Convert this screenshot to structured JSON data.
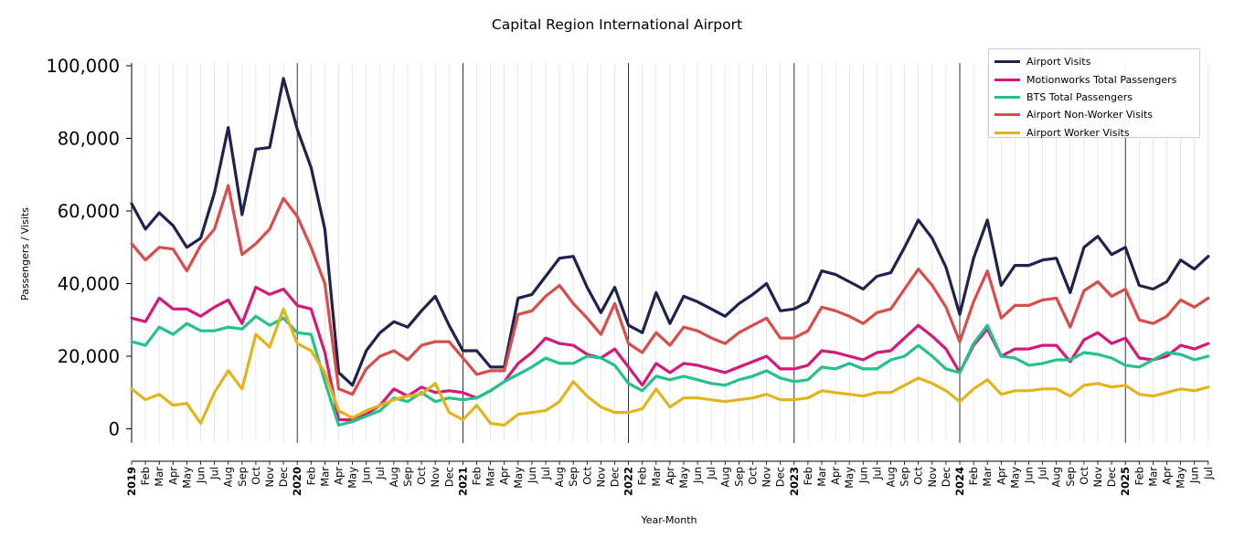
{
  "chart_data": {
    "type": "line",
    "title": "Capital Region International Airport",
    "xlabel": "Year-Month",
    "ylabel": "Passengers / Visits",
    "ylim": [
      -4000,
      101000
    ],
    "yticks": [
      0,
      20000,
      40000,
      60000,
      80000,
      100000
    ],
    "ytick_labels": [
      "0",
      "20,000",
      "40,000",
      "60,000",
      "80,000",
      "100,000"
    ],
    "grid": "vertical monthly lines; darker lines at year boundaries",
    "legend_position": "top-right",
    "x": [
      "2019-01",
      "2019-02",
      "2019-03",
      "2019-04",
      "2019-05",
      "2019-06",
      "2019-07",
      "2019-08",
      "2019-09",
      "2019-10",
      "2019-11",
      "2019-12",
      "2020-01",
      "2020-02",
      "2020-03",
      "2020-04",
      "2020-05",
      "2020-06",
      "2020-07",
      "2020-08",
      "2020-09",
      "2020-10",
      "2020-11",
      "2020-12",
      "2021-01",
      "2021-02",
      "2021-03",
      "2021-04",
      "2021-05",
      "2021-06",
      "2021-07",
      "2021-08",
      "2021-09",
      "2021-10",
      "2021-11",
      "2021-12",
      "2022-01",
      "2022-02",
      "2022-03",
      "2022-04",
      "2022-05",
      "2022-06",
      "2022-07",
      "2022-08",
      "2022-09",
      "2022-10",
      "2022-11",
      "2022-12",
      "2023-01",
      "2023-02",
      "2023-03",
      "2023-04",
      "2023-05",
      "2023-06",
      "2023-07",
      "2023-08",
      "2023-09",
      "2023-10",
      "2023-11",
      "2023-12",
      "2024-01",
      "2024-02",
      "2024-03",
      "2024-04",
      "2024-05",
      "2024-06",
      "2024-07",
      "2024-08",
      "2024-09",
      "2024-10",
      "2024-11",
      "2024-12",
      "2025-01",
      "2025-02",
      "2025-03",
      "2025-04",
      "2025-05",
      "2025-06",
      "2025-07"
    ],
    "x_tick_labels": [
      "2019",
      "Feb",
      "Mar",
      "Apr",
      "May",
      "Jun",
      "Jul",
      "Aug",
      "Sep",
      "Oct",
      "Nov",
      "Dec",
      "2020",
      "Feb",
      "Mar",
      "Apr",
      "May",
      "Jun",
      "Jul",
      "Aug",
      "Sep",
      "Oct",
      "Nov",
      "Dec",
      "2021",
      "Feb",
      "Mar",
      "Apr",
      "May",
      "Jun",
      "Jul",
      "Aug",
      "Sep",
      "Oct",
      "Nov",
      "Dec",
      "2022",
      "Feb",
      "Mar",
      "Apr",
      "May",
      "Jun",
      "Jul",
      "Aug",
      "Sep",
      "Oct",
      "Nov",
      "Dec",
      "2023",
      "Feb",
      "Mar",
      "Apr",
      "May",
      "Jun",
      "Jul",
      "Aug",
      "Sep",
      "Oct",
      "Nov",
      "Dec",
      "2024",
      "Feb",
      "Mar",
      "Apr",
      "May",
      "Jun",
      "Jul",
      "Aug",
      "Sep",
      "Oct",
      "Nov",
      "Dec",
      "2025",
      "Feb",
      "Mar",
      "Apr",
      "May",
      "Jun",
      "Jul"
    ],
    "series": [
      {
        "name": "Airport Visits",
        "color": "#1f2150",
        "values": [
          62000,
          55000,
          59500,
          56000,
          50000,
          52500,
          65000,
          83000,
          59000,
          77000,
          77500,
          96500,
          82500,
          72000,
          55000,
          15500,
          12000,
          21500,
          26500,
          29500,
          28000,
          32500,
          36500,
          28500,
          21500,
          21500,
          17000,
          17000,
          36000,
          37000,
          42000,
          47000,
          47500,
          39000,
          32000,
          39000,
          28500,
          26500,
          37500,
          29000,
          36500,
          35000,
          33000,
          31000,
          34500,
          37000,
          40000,
          32500,
          33000,
          35000,
          43500,
          42500,
          40500,
          38500,
          42000,
          43000,
          50000,
          57500,
          52500,
          44500,
          31500,
          47000,
          57500,
          39500,
          45000,
          45000,
          46500,
          47000,
          37500,
          50000,
          53000,
          48000,
          50000,
          39500,
          38500,
          40500,
          46500,
          44000,
          47500
        ]
      },
      {
        "name": "Motionworks Total Passengers",
        "color": "#d4197a",
        "values": [
          30500,
          29500,
          36000,
          33000,
          33000,
          31000,
          33500,
          35500,
          29000,
          39000,
          37000,
          38500,
          34000,
          33000,
          21000,
          2500,
          2500,
          4000,
          6500,
          11000,
          9000,
          11500,
          10000,
          10500,
          10000,
          8500,
          10500,
          13000,
          18000,
          21000,
          25000,
          23500,
          23000,
          20500,
          19500,
          22000,
          17000,
          12000,
          18000,
          15500,
          18000,
          17500,
          16500,
          15500,
          17000,
          18500,
          20000,
          16500,
          16500,
          17500,
          21500,
          21000,
          20000,
          19000,
          21000,
          21500,
          25000,
          28500,
          25500,
          22000,
          15500,
          23000,
          27500,
          20000,
          22000,
          22000,
          23000,
          23000,
          18500,
          24500,
          26500,
          23500,
          25000,
          19500,
          19000,
          20000,
          23000,
          22000,
          23500
        ]
      },
      {
        "name": "BTS Total Passengers",
        "color": "#25c18c",
        "values": [
          24000,
          23000,
          28000,
          26000,
          29000,
          27000,
          27000,
          28000,
          27500,
          31000,
          28500,
          30500,
          26500,
          26000,
          13000,
          1000,
          2000,
          3500,
          5000,
          8500,
          7500,
          10000,
          7500,
          8500,
          8000,
          8500,
          10500,
          13000,
          15000,
          17000,
          19500,
          18000,
          18000,
          20000,
          19500,
          17500,
          12500,
          10500,
          14500,
          13500,
          14500,
          13500,
          12500,
          12000,
          13500,
          14500,
          16000,
          14000,
          13000,
          13500,
          17000,
          16500,
          18000,
          16500,
          16500,
          19000,
          20000,
          23000,
          20000,
          16500,
          15500,
          23500,
          28500,
          20000,
          19500,
          17500,
          18000,
          19000,
          19000,
          21000,
          20500,
          19500,
          17500,
          17000,
          19000,
          21000,
          20500,
          19000,
          20000
        ]
      },
      {
        "name": "Airport Non-Worker Visits",
        "color": "#d94c4a",
        "values": [
          51000,
          46500,
          50000,
          49500,
          43500,
          50500,
          55000,
          67000,
          48000,
          51000,
          55000,
          63500,
          58500,
          50000,
          40000,
          11000,
          9500,
          16500,
          20000,
          21500,
          19000,
          23000,
          24000,
          24000,
          19500,
          15000,
          16000,
          16000,
          31500,
          32500,
          36500,
          39500,
          34500,
          30500,
          26000,
          34500,
          23500,
          21000,
          26500,
          23000,
          28000,
          27000,
          25000,
          23500,
          26500,
          28500,
          30500,
          25000,
          25000,
          27000,
          33500,
          32500,
          31000,
          29000,
          32000,
          33000,
          38500,
          44000,
          39500,
          33500,
          24000,
          35000,
          43500,
          30500,
          34000,
          34000,
          35500,
          36000,
          28000,
          38000,
          40500,
          36500,
          38500,
          30000,
          29000,
          31000,
          35500,
          33500,
          36000
        ]
      },
      {
        "name": "Airport Worker Visits",
        "color": "#e3b41a",
        "values": [
          11000,
          8000,
          9500,
          6500,
          7000,
          1500,
          10000,
          16000,
          11000,
          26000,
          22500,
          33000,
          23500,
          21500,
          15500,
          5000,
          3000,
          5000,
          6500,
          8000,
          9000,
          9500,
          12500,
          4500,
          2500,
          6500,
          1500,
          1000,
          4000,
          4500,
          5000,
          7500,
          13000,
          9000,
          6000,
          4500,
          4500,
          5500,
          11000,
          6000,
          8500,
          8500,
          8000,
          7500,
          8000,
          8500,
          9500,
          8000,
          8000,
          8500,
          10500,
          10000,
          9500,
          9000,
          10000,
          10000,
          12000,
          14000,
          12500,
          10500,
          7500,
          11000,
          13500,
          9500,
          10500,
          10500,
          11000,
          11000,
          9000,
          12000,
          12500,
          11500,
          12000,
          9500,
          9000,
          10000,
          11000,
          10500,
          11500
        ]
      }
    ]
  }
}
